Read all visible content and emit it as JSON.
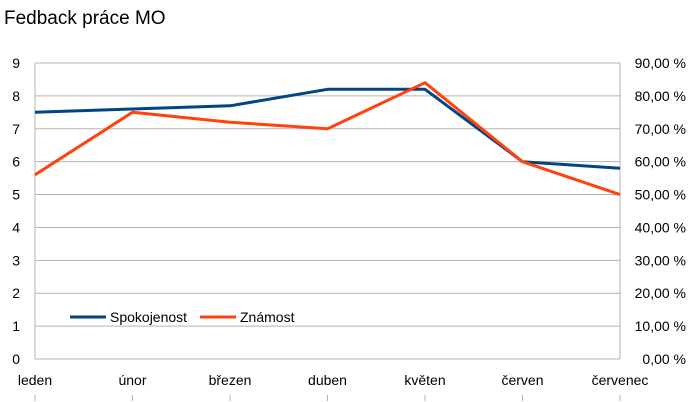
{
  "chart_data": {
    "type": "line",
    "title": "Fedback práce MO",
    "categories": [
      "leden",
      "únor",
      "březen",
      "duben",
      "květen",
      "červen",
      "červenec"
    ],
    "y_left": {
      "range": [
        0,
        9
      ],
      "ticks": [
        "0",
        "1",
        "2",
        "3",
        "4",
        "5",
        "6",
        "7",
        "8",
        "9"
      ]
    },
    "y_right": {
      "range": [
        0,
        90
      ],
      "ticks": [
        "0,00 %",
        "10,00 %",
        "20,00 %",
        "30,00 %",
        "40,00 %",
        "50,00 %",
        "60,00 %",
        "70,00 %",
        "80,00 %",
        "90,00 %"
      ]
    },
    "grid": "horizontal",
    "legend_position": "bottom-left",
    "series": [
      {
        "name": "Spokojenost",
        "axis": "left",
        "color": "#004586",
        "values": [
          7.5,
          7.6,
          7.7,
          8.2,
          8.2,
          6.0,
          5.8
        ]
      },
      {
        "name": "Známost",
        "axis": "right",
        "color": "#ff420e",
        "values": [
          56,
          75,
          72,
          70,
          84,
          60,
          50
        ]
      }
    ]
  }
}
